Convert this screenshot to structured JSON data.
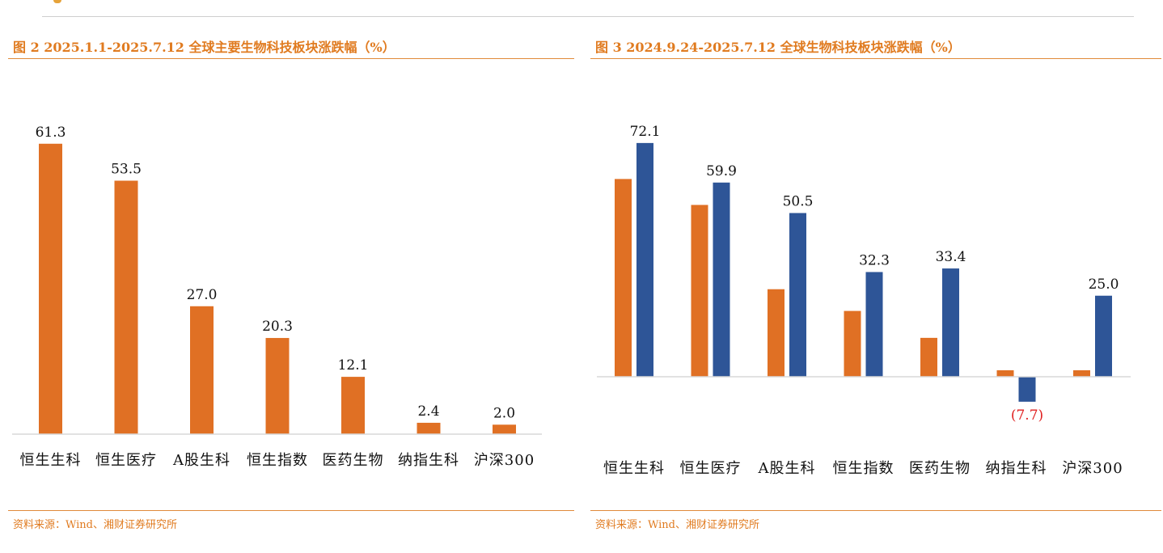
{
  "page": {
    "source_text": "资料来源：Wind、湘财证券研究所"
  },
  "figures": [
    {
      "id": "fig2",
      "title": "图 2 2025.1.1-2025.7.12  全球主要生物科技板块涨跌幅（%）",
      "source": "资料来源：Wind、湘财证券研究所"
    },
    {
      "id": "fig3",
      "title": "图 3 2024.9.24-2025.7.12  全球生物科技板块涨跌幅（%）",
      "source": "资料来源：Wind、湘财证券研究所"
    }
  ],
  "colors": {
    "accent": "#e07b20",
    "bar_orange": "#e07024",
    "bar_blue": "#2e5597",
    "negative_label": "#e02020",
    "axis": "#d9d9d9"
  },
  "chart_data": [
    {
      "type": "bar",
      "title": "图 2 2025.1.1-2025.7.12  全球主要生物科技板块涨跌幅（%）",
      "categories": [
        "恒生生科",
        "恒生医疗",
        "A股生科",
        "恒生指数",
        "医药生物",
        "纳指生科",
        "沪深300"
      ],
      "series": [
        {
          "values": [
            61.3,
            53.5,
            27.0,
            20.3,
            12.1,
            2.4,
            2.0
          ],
          "color": "#e07024",
          "labels": [
            "61.3",
            "53.5",
            "27.0",
            "20.3",
            "12.1",
            "2.4",
            "2.0"
          ]
        }
      ],
      "ylim": [
        0,
        70
      ],
      "grid": false,
      "legend": "none"
    },
    {
      "type": "bar",
      "title": "图 3 2024.9.24-2025.7.12  全球生物科技板块涨跌幅（%）",
      "categories": [
        "恒生生科",
        "恒生医疗",
        "A股生科",
        "恒生指数",
        "医药生物",
        "纳指生科",
        "沪深300"
      ],
      "series": [
        {
          "values": [
            61.0,
            53.0,
            27.0,
            20.3,
            12.0,
            2.0,
            2.0
          ],
          "color": "#e07024",
          "labels": []
        },
        {
          "values": [
            72.1,
            59.9,
            50.5,
            32.3,
            33.4,
            -7.7,
            25.0
          ],
          "color": "#2e5597",
          "labels": [
            "72.1",
            "59.9",
            "50.5",
            "32.3",
            "33.4",
            "(7.7)",
            "25.0"
          ]
        }
      ],
      "ylim": [
        -10,
        80
      ],
      "grid": false,
      "legend": "none"
    }
  ]
}
